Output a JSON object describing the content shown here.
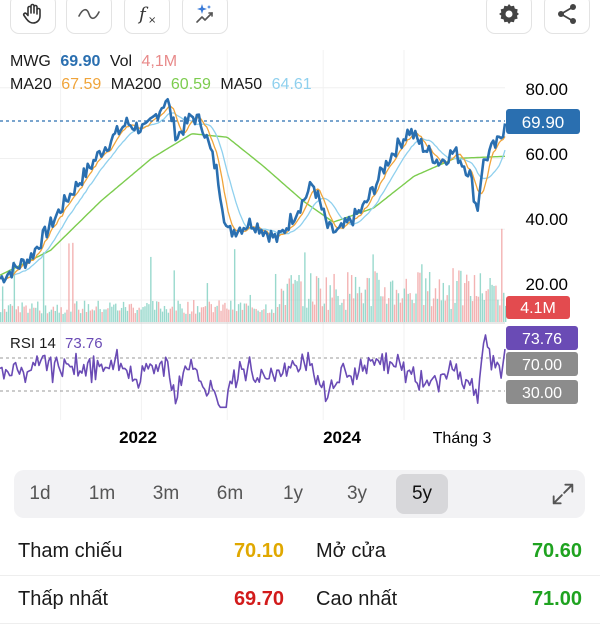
{
  "toolbar": {
    "left_tools": [
      {
        "name": "draw-hand-icon"
      },
      {
        "name": "curve-icon"
      },
      {
        "name": "function-icon"
      },
      {
        "name": "ai-trend-icon"
      }
    ],
    "right_tools": [
      {
        "name": "settings-gear-icon"
      },
      {
        "name": "share-icon"
      }
    ]
  },
  "legend": {
    "symbol": "MWG",
    "price": "69.90",
    "vol_label": "Vol",
    "vol_value": "4,1M",
    "ma20_label": "MA20",
    "ma20_value": "67.59",
    "ma200_label": "MA200",
    "ma200_value": "60.59",
    "ma50_label": "MA50",
    "ma50_value": "64.61"
  },
  "price_axis": {
    "ticks": [
      "80.00",
      "60.00",
      "40.00",
      "20.00"
    ],
    "current_price_tag": "69.90",
    "volume_tag": "4.1M"
  },
  "rsi": {
    "label": "RSI 14",
    "value": "73.76",
    "tag": "73.76",
    "upper_level": "70.00",
    "lower_level": "30.00"
  },
  "x_axis": {
    "labels": [
      "2022",
      "2024",
      "Tháng 3"
    ]
  },
  "colors": {
    "price_line": "#2a6fb0",
    "ma20": "#f0a43a",
    "ma50": "#8fd0ee",
    "ma200": "#7ccc4e",
    "rsi_line": "#6a4bb5",
    "rsi_tag": "#6a4bb5",
    "level_tag": "#8c8c8c",
    "volume_tag": "#e34b4f",
    "vol_up": "#7fd0c0",
    "vol_down": "#f0a0a0"
  },
  "timeframes": [
    {
      "label": "1d",
      "active": false
    },
    {
      "label": "1m",
      "active": false
    },
    {
      "label": "3m",
      "active": false
    },
    {
      "label": "6m",
      "active": false
    },
    {
      "label": "1y",
      "active": false
    },
    {
      "label": "3y",
      "active": false
    },
    {
      "label": "5y",
      "active": true
    }
  ],
  "stats": {
    "reference_label": "Tham chiếu",
    "reference_value": "70.10",
    "open_label": "Mở cửa",
    "open_value": "70.60",
    "low_label": "Thấp nhất",
    "low_value": "69.70",
    "high_label": "Cao nhất",
    "high_value": "71.00"
  },
  "chart_data": {
    "type": "line",
    "price_anchors": [
      {
        "x": 0.0,
        "y": 26
      },
      {
        "x": 0.06,
        "y": 32
      },
      {
        "x": 0.13,
        "y": 48
      },
      {
        "x": 0.2,
        "y": 62
      },
      {
        "x": 0.25,
        "y": 70
      },
      {
        "x": 0.29,
        "y": 68
      },
      {
        "x": 0.33,
        "y": 77
      },
      {
        "x": 0.35,
        "y": 66
      },
      {
        "x": 0.38,
        "y": 72
      },
      {
        "x": 0.4,
        "y": 70
      },
      {
        "x": 0.43,
        "y": 56
      },
      {
        "x": 0.45,
        "y": 39
      },
      {
        "x": 0.5,
        "y": 42
      },
      {
        "x": 0.55,
        "y": 37
      },
      {
        "x": 0.6,
        "y": 48
      },
      {
        "x": 0.62,
        "y": 53
      },
      {
        "x": 0.65,
        "y": 40
      },
      {
        "x": 0.67,
        "y": 39
      },
      {
        "x": 0.72,
        "y": 46
      },
      {
        "x": 0.77,
        "y": 60
      },
      {
        "x": 0.81,
        "y": 68
      },
      {
        "x": 0.84,
        "y": 63
      },
      {
        "x": 0.87,
        "y": 59
      },
      {
        "x": 0.9,
        "y": 62
      },
      {
        "x": 0.93,
        "y": 56
      },
      {
        "x": 0.945,
        "y": 45
      },
      {
        "x": 0.955,
        "y": 58
      },
      {
        "x": 0.97,
        "y": 62
      },
      {
        "x": 0.99,
        "y": 65
      },
      {
        "x": 1.0,
        "y": 69.9
      }
    ],
    "ma200_anchors": [
      {
        "x": 0.0,
        "y": 27
      },
      {
        "x": 0.1,
        "y": 34
      },
      {
        "x": 0.2,
        "y": 48
      },
      {
        "x": 0.3,
        "y": 60
      },
      {
        "x": 0.38,
        "y": 67
      },
      {
        "x": 0.45,
        "y": 66
      },
      {
        "x": 0.52,
        "y": 58
      },
      {
        "x": 0.6,
        "y": 48
      },
      {
        "x": 0.66,
        "y": 42
      },
      {
        "x": 0.74,
        "y": 46
      },
      {
        "x": 0.82,
        "y": 55
      },
      {
        "x": 0.9,
        "y": 60
      },
      {
        "x": 1.0,
        "y": 60.6
      }
    ],
    "y_range": [
      20,
      85
    ],
    "rsi_range": [
      20,
      90
    ]
  }
}
